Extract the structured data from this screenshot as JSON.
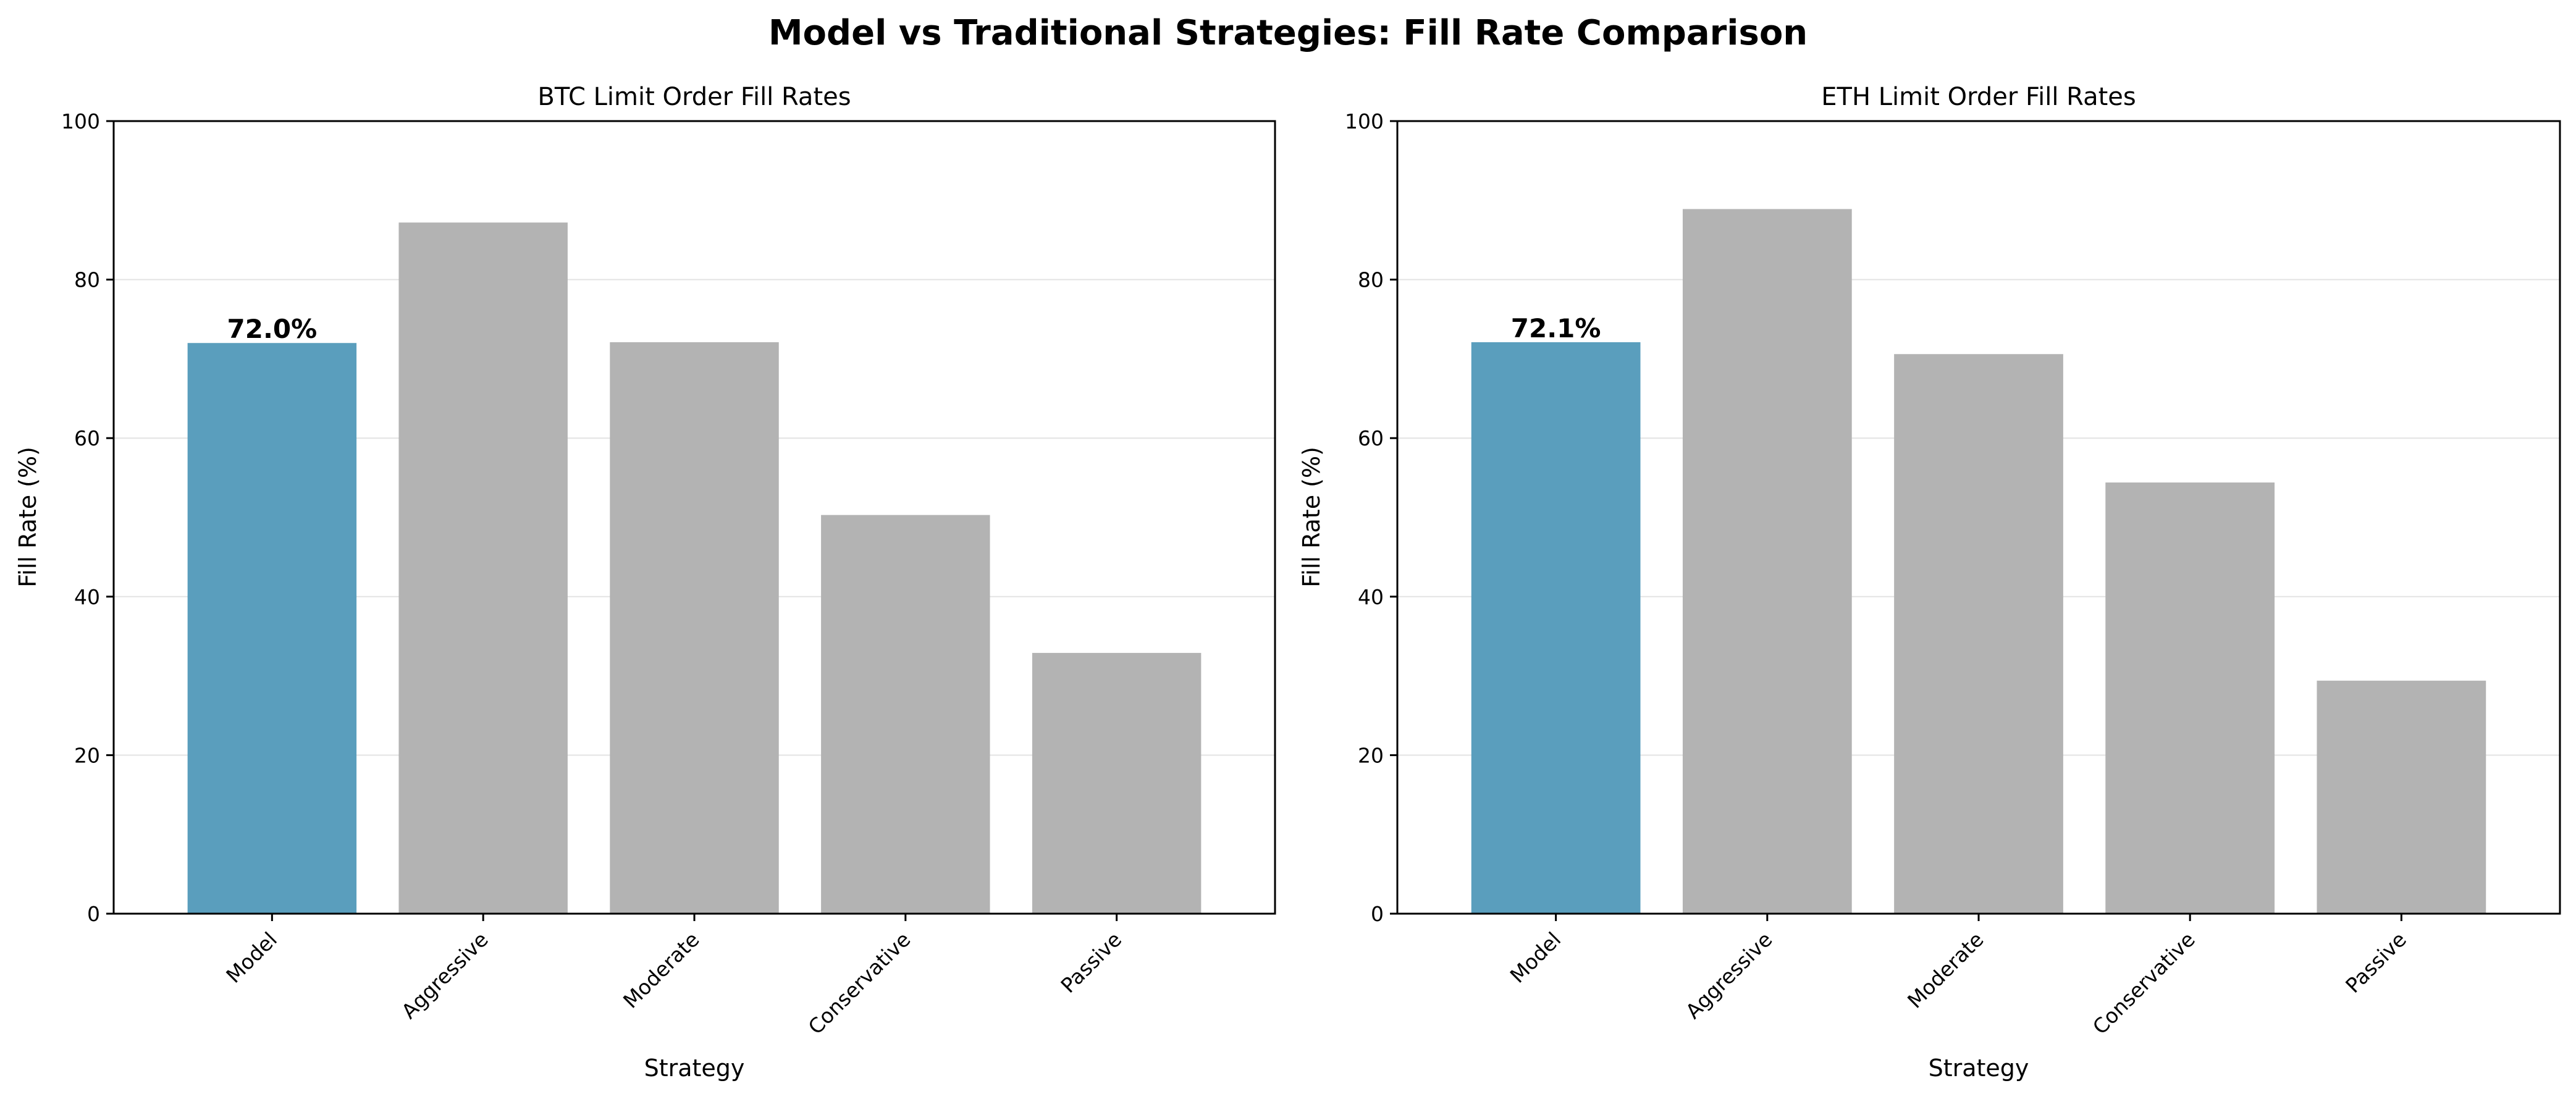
{
  "figure": {
    "title": "Model vs Traditional Strategies: Fill Rate Comparison"
  },
  "chart_data": [
    {
      "type": "bar",
      "title": "BTC Limit Order Fill Rates",
      "xlabel": "Strategy",
      "ylabel": "Fill Rate (%)",
      "ylim": [
        0,
        100
      ],
      "yticks": [
        "0",
        "20",
        "40",
        "60",
        "80",
        "100"
      ],
      "grid": "y",
      "categories": [
        "Model",
        "Aggressive",
        "Moderate",
        "Conservative",
        "Passive"
      ],
      "values": [
        72.0,
        87.2,
        72.1,
        50.3,
        32.9
      ],
      "colors": [
        "#5a9ebd",
        "#b3b3b3",
        "#b3b3b3",
        "#b3b3b3",
        "#b3b3b3"
      ],
      "annotation": {
        "category": "Model",
        "text": "72.0%"
      }
    },
    {
      "type": "bar",
      "title": "ETH Limit Order Fill Rates",
      "xlabel": "Strategy",
      "ylabel": "Fill Rate (%)",
      "ylim": [
        0,
        100
      ],
      "yticks": [
        "0",
        "20",
        "40",
        "60",
        "80",
        "100"
      ],
      "grid": "y",
      "categories": [
        "Model",
        "Aggressive",
        "Moderate",
        "Conservative",
        "Passive"
      ],
      "values": [
        72.1,
        88.9,
        70.6,
        54.4,
        29.4
      ],
      "colors": [
        "#5a9ebd",
        "#b3b3b3",
        "#b3b3b3",
        "#b3b3b3",
        "#b3b3b3"
      ],
      "annotation": {
        "category": "Model",
        "text": "72.1%"
      }
    }
  ]
}
